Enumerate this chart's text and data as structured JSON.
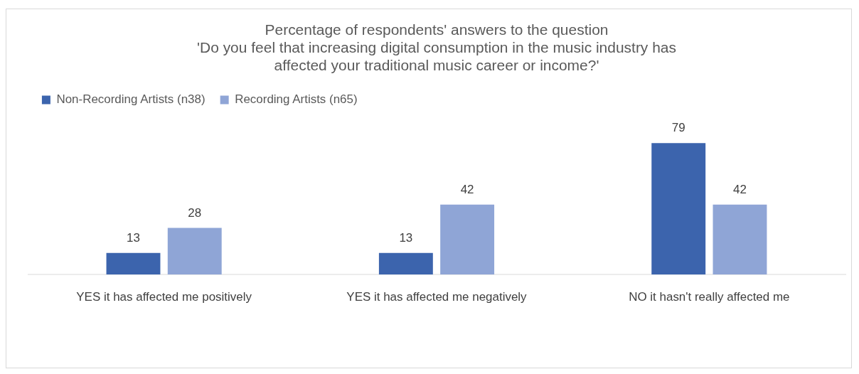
{
  "chart_data": {
    "type": "bar",
    "title": "Percentage of respondents' answers to the question\n'Do you feel that increasing digital consumption in the music industry has\naffected your traditional music career or income?'",
    "categories": [
      "YES it has affected me positively",
      "YES it has affected me negatively",
      "NO it hasn't really affected me"
    ],
    "series": [
      {
        "name": "Non-Recording Artists (n38)",
        "color": "#3c64ad",
        "values": [
          13,
          13,
          79
        ]
      },
      {
        "name": "Recording Artists (n65)",
        "color": "#8fa5d6",
        "values": [
          28,
          42,
          42
        ]
      }
    ],
    "data_labels": true,
    "legend": "top",
    "grid": false
  }
}
